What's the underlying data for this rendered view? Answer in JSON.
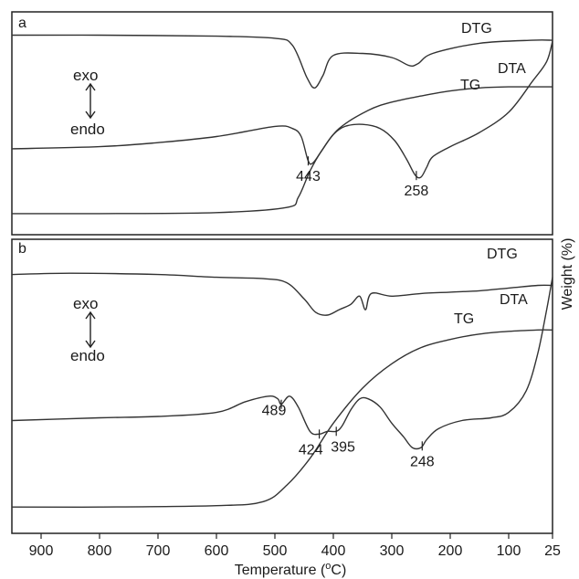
{
  "chart_data": {
    "type": "line",
    "x_axis": {
      "label": "Temperature (°C)",
      "label_main": "Temperature (",
      "label_sup": "o",
      "label_unit": "C)",
      "reversed": true,
      "xlim": [
        950,
        25
      ],
      "ticks": [
        900,
        800,
        700,
        600,
        500,
        400,
        300,
        200,
        100,
        25
      ]
    },
    "y_axis_label": "Weight (%)",
    "panels": [
      {
        "id": "a",
        "label": "a",
        "legend": {
          "exo": "exo",
          "endo": "endo"
        },
        "series": [
          {
            "name": "DTG",
            "points": [
              [
                950,
                0.93
              ],
              [
                800,
                0.93
              ],
              [
                600,
                0.925
              ],
              [
                500,
                0.915
              ],
              [
                470,
                0.88
              ],
              [
                445,
                0.72
              ],
              [
                432,
                0.67
              ],
              [
                418,
                0.73
              ],
              [
                400,
                0.83
              ],
              [
                350,
                0.84
              ],
              [
                300,
                0.82
              ],
              [
                270,
                0.78
              ],
              [
                255,
                0.79
              ],
              [
                230,
                0.84
              ],
              [
                150,
                0.89
              ],
              [
                60,
                0.905
              ],
              [
                25,
                0.905
              ]
            ]
          },
          {
            "name": "TG",
            "points": [
              [
                950,
                0.05
              ],
              [
                800,
                0.05
              ],
              [
                600,
                0.055
              ],
              [
                480,
                0.08
              ],
              [
                460,
                0.13
              ],
              [
                440,
                0.26
              ],
              [
                420,
                0.36
              ],
              [
                390,
                0.47
              ],
              [
                340,
                0.56
              ],
              [
                300,
                0.6
              ],
              [
                250,
                0.63
              ],
              [
                200,
                0.655
              ],
              [
                150,
                0.67
              ],
              [
                100,
                0.675
              ],
              [
                25,
                0.675
              ]
            ]
          },
          {
            "name": "DTA",
            "points": [
              [
                950,
                0.37
              ],
              [
                800,
                0.38
              ],
              [
                700,
                0.4
              ],
              [
                600,
                0.43
              ],
              [
                500,
                0.48
              ],
              [
                470,
                0.47
              ],
              [
                455,
                0.43
              ],
              [
                443,
                0.31
              ],
              [
                435,
                0.3
              ],
              [
                420,
                0.36
              ],
              [
                400,
                0.44
              ],
              [
                380,
                0.48
              ],
              [
                350,
                0.49
              ],
              [
                320,
                0.47
              ],
              [
                295,
                0.41
              ],
              [
                275,
                0.32
              ],
              [
                260,
                0.24
              ],
              [
                250,
                0.23
              ],
              [
                240,
                0.28
              ],
              [
                230,
                0.33
              ],
              [
                200,
                0.38
              ],
              [
                150,
                0.45
              ],
              [
                100,
                0.55
              ],
              [
                60,
                0.7
              ],
              [
                35,
                0.8
              ],
              [
                25,
                0.9
              ]
            ]
          }
        ],
        "series_labels": [
          "DTG",
          "TG",
          "DTA"
        ],
        "peaks": [
          {
            "x": 443,
            "label": "443"
          },
          {
            "x": 258,
            "label": "258"
          }
        ]
      },
      {
        "id": "b",
        "label": "b",
        "legend": {
          "exo": "exo",
          "endo": "endo"
        },
        "series": [
          {
            "name": "DTG",
            "points": [
              [
                950,
                0.91
              ],
              [
                850,
                0.915
              ],
              [
                700,
                0.91
              ],
              [
                600,
                0.9
              ],
              [
                520,
                0.895
              ],
              [
                480,
                0.88
              ],
              [
                450,
                0.82
              ],
              [
                430,
                0.77
              ],
              [
                410,
                0.76
              ],
              [
                390,
                0.78
              ],
              [
                370,
                0.8
              ],
              [
                355,
                0.83
              ],
              [
                345,
                0.78
              ],
              [
                335,
                0.84
              ],
              [
                300,
                0.83
              ],
              [
                250,
                0.84
              ],
              [
                200,
                0.845
              ],
              [
                150,
                0.85
              ],
              [
                100,
                0.86
              ],
              [
                50,
                0.87
              ],
              [
                25,
                0.87
              ]
            ]
          },
          {
            "name": "TG",
            "points": [
              [
                950,
                0.05
              ],
              [
                800,
                0.05
              ],
              [
                600,
                0.055
              ],
              [
                520,
                0.07
              ],
              [
                480,
                0.13
              ],
              [
                440,
                0.23
              ],
              [
                400,
                0.36
              ],
              [
                350,
                0.49
              ],
              [
                300,
                0.58
              ],
              [
                250,
                0.64
              ],
              [
                200,
                0.67
              ],
              [
                150,
                0.69
              ],
              [
                100,
                0.7
              ],
              [
                50,
                0.705
              ],
              [
                25,
                0.705
              ]
            ]
          },
          {
            "name": "DTA",
            "points": [
              [
                950,
                0.37
              ],
              [
                800,
                0.38
              ],
              [
                700,
                0.385
              ],
              [
                600,
                0.4
              ],
              [
                550,
                0.44
              ],
              [
                510,
                0.46
              ],
              [
                495,
                0.45
              ],
              [
                489,
                0.43
              ],
              [
                475,
                0.46
              ],
              [
                460,
                0.42
              ],
              [
                440,
                0.33
              ],
              [
                424,
                0.32
              ],
              [
                410,
                0.33
              ],
              [
                395,
                0.33
              ],
              [
                385,
                0.35
              ],
              [
                370,
                0.41
              ],
              [
                355,
                0.45
              ],
              [
                340,
                0.45
              ],
              [
                320,
                0.42
              ],
              [
                300,
                0.36
              ],
              [
                280,
                0.31
              ],
              [
                265,
                0.27
              ],
              [
                250,
                0.27
              ],
              [
                240,
                0.3
              ],
              [
                220,
                0.34
              ],
              [
                180,
                0.37
              ],
              [
                130,
                0.38
              ],
              [
                100,
                0.4
              ],
              [
                70,
                0.48
              ],
              [
                50,
                0.62
              ],
              [
                35,
                0.78
              ],
              [
                25,
                0.9
              ]
            ]
          }
        ],
        "series_labels": [
          "DTG",
          "TG",
          "DTA"
        ],
        "peaks": [
          {
            "x": 489,
            "label": "489"
          },
          {
            "x": 424,
            "label": "424"
          },
          {
            "x": 395,
            "label": "395"
          },
          {
            "x": 248,
            "label": "248"
          }
        ]
      }
    ]
  }
}
